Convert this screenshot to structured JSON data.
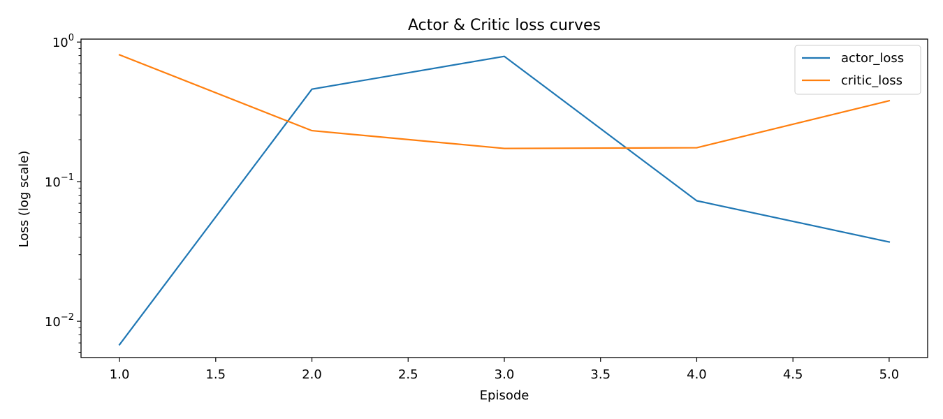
{
  "chart_data": {
    "type": "line",
    "title": "Actor & Critic loss curves",
    "xlabel": "Episode",
    "ylabel": "Loss (log scale)",
    "yscale": "log",
    "xlim": [
      0.8,
      5.2
    ],
    "ylim": [
      0.0055,
      1.05
    ],
    "x": [
      1,
      2,
      3,
      4,
      5
    ],
    "x_ticks": [
      1.0,
      1.5,
      2.0,
      2.5,
      3.0,
      3.5,
      4.0,
      4.5,
      5.0
    ],
    "x_tick_labels": [
      "1.0",
      "1.5",
      "2.0",
      "2.5",
      "3.0",
      "3.5",
      "4.0",
      "4.5",
      "5.0"
    ],
    "y_ticks": [
      0.01,
      0.1,
      1
    ],
    "grid": false,
    "legend_position": "top-right",
    "series": [
      {
        "name": "actor_loss",
        "color": "#1f77b4",
        "values": [
          0.0068,
          0.46,
          0.79,
          0.073,
          0.037
        ]
      },
      {
        "name": "critic_loss",
        "color": "#ff7f0e",
        "values": [
          0.81,
          0.232,
          0.173,
          0.175,
          0.38
        ]
      }
    ]
  }
}
